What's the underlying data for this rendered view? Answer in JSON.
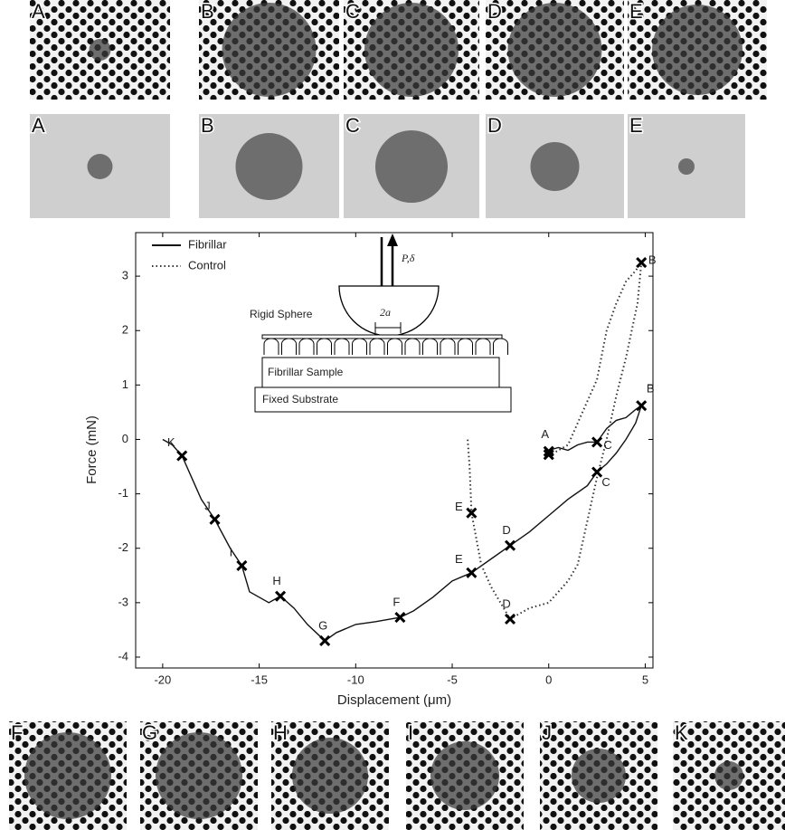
{
  "panels_top": [
    "A",
    "B",
    "C",
    "D",
    "E"
  ],
  "panels_middle": [
    "A",
    "B",
    "C",
    "D",
    "E"
  ],
  "panels_bottom": [
    "F",
    "G",
    "H",
    "I",
    "J",
    "K"
  ],
  "chart_data": {
    "type": "line",
    "xlabel": "Displacement (μm)",
    "ylabel": "Force (mN)",
    "xlim": [
      -21.4,
      5.4
    ],
    "ylim": [
      -4.2,
      3.8
    ],
    "xticks": [
      -20,
      -15,
      -10,
      -5,
      0,
      5
    ],
    "yticks": [
      -4,
      -3,
      -2,
      -1,
      0,
      1,
      2,
      3
    ],
    "legend": "upper left",
    "series": [
      {
        "name": "Fibrillar",
        "color": "#111",
        "style": "solid",
        "x": [
          0,
          0.5,
          1,
          1.5,
          2,
          2.5,
          3,
          3.5,
          4,
          4.5,
          4.8,
          4.5,
          4,
          3.5,
          3,
          2.5,
          2,
          1,
          0,
          -1,
          -2,
          -3,
          -4,
          -5,
          -6,
          -7,
          -7.7,
          -9,
          -10,
          -11,
          -11.6,
          -12.5,
          -13.2,
          -13.9,
          -14.5,
          -15.5,
          -15.9,
          -16.5,
          -17.3,
          -18,
          -18.5,
          -19,
          -19.5,
          -20
        ],
        "values": [
          -0.2,
          -0.15,
          -0.2,
          -0.1,
          -0.05,
          -0.05,
          0.2,
          0.35,
          0.4,
          0.55,
          0.62,
          0.3,
          0,
          -0.25,
          -0.45,
          -0.6,
          -0.85,
          -1.1,
          -1.4,
          -1.7,
          -1.95,
          -2.2,
          -2.45,
          -2.6,
          -2.9,
          -3.15,
          -3.27,
          -3.35,
          -3.4,
          -3.55,
          -3.7,
          -3.4,
          -3.1,
          -2.88,
          -3,
          -2.8,
          -2.32,
          -2,
          -1.47,
          -1.1,
          -0.7,
          -0.3,
          -0.1,
          0
        ]
      },
      {
        "name": "Control",
        "color": "#333",
        "style": "dotted",
        "x": [
          0,
          1,
          1.5,
          2,
          2.5,
          3,
          3.5,
          4,
          4.5,
          4.8,
          4.6,
          4,
          3.5,
          3,
          2.5,
          2,
          1.5,
          1,
          0,
          -1,
          -2,
          -3,
          -3.5,
          -4,
          -4.1,
          -4.2
        ],
        "values": [
          -0.3,
          -0.1,
          0.3,
          0.7,
          1.1,
          2,
          2.5,
          2.9,
          3.1,
          3.25,
          2.5,
          1.5,
          0.8,
          0,
          -0.7,
          -1.5,
          -2.3,
          -2.6,
          -3,
          -3.1,
          -3.3,
          -2.7,
          -2.3,
          -1.35,
          -0.5,
          0
        ]
      }
    ],
    "markers": [
      {
        "text": "K",
        "x": -19,
        "y": -0.3
      },
      {
        "text": "J",
        "x": -17.3,
        "y": -1.47
      },
      {
        "text": "I",
        "x": -15.9,
        "y": -2.32
      },
      {
        "text": "H",
        "x": -13.9,
        "y": -2.88
      },
      {
        "text": "G",
        "x": -11.6,
        "y": -3.7
      },
      {
        "text": "F",
        "x": -7.7,
        "y": -3.27
      },
      {
        "text": "E",
        "x": -4,
        "y": -2.45
      },
      {
        "text": "D",
        "x": -2,
        "y": -1.95
      },
      {
        "text": "C",
        "x": 2.5,
        "y": -0.6
      },
      {
        "text": "B",
        "x": 4.8,
        "y": 0.62
      },
      {
        "text": "A",
        "x": 0,
        "y": -0.22
      },
      {
        "x": 0,
        "y": -0.28
      },
      {
        "text": "C",
        "x": 2.5,
        "y": -0.05
      },
      {
        "text": "D",
        "x": -2,
        "y": -3.3
      },
      {
        "text": "E",
        "x": -4,
        "y": -1.35
      },
      {
        "text": "B",
        "x": 4.8,
        "y": 3.25
      }
    ],
    "inset": {
      "load": "P,δ",
      "sphere": "Rigid Sphere",
      "contact": "2a",
      "sample": "Fibrillar Sample",
      "substrate": "Fixed Substrate"
    }
  }
}
